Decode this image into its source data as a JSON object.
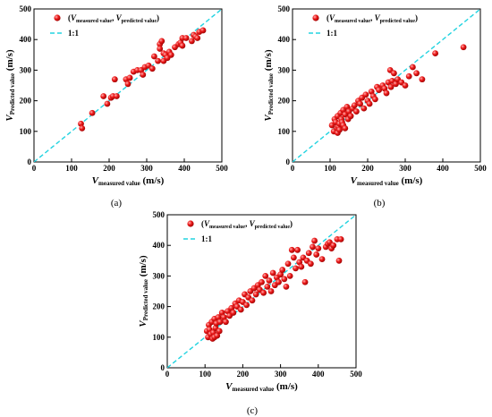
{
  "chart_data": [
    {
      "type": "scatter",
      "panel_label": "(a)",
      "xlim": [
        0,
        500
      ],
      "ylim": [
        0,
        500
      ],
      "xticks": [
        0,
        100,
        200,
        300,
        400,
        500
      ],
      "yticks": [
        0,
        100,
        200,
        300,
        400,
        500
      ],
      "xlabel": {
        "var": "V",
        "sub": "measured value",
        "unit": " (m/s)"
      },
      "ylabel": {
        "var": "V",
        "sub": "Predicted value",
        "unit": " (m/s)"
      },
      "legend": {
        "position": "top-left",
        "scatter_label": {
          "open": "(",
          "v1": "V",
          "s1": "measured value",
          "mid": ", ",
          "v2": "V",
          "s2": "predicted value",
          "close": ")"
        },
        "line_label": "1:1"
      },
      "grid": false,
      "series": [
        {
          "kind": "points",
          "points": [
            [
              125,
              125
            ],
            [
              128,
              110
            ],
            [
              155,
              160
            ],
            [
              185,
              215
            ],
            [
              195,
              190
            ],
            [
              205,
              210
            ],
            [
              210,
              215
            ],
            [
              215,
              270
            ],
            [
              220,
              215
            ],
            [
              245,
              270
            ],
            [
              250,
              255
            ],
            [
              255,
              275
            ],
            [
              265,
              295
            ],
            [
              275,
              300
            ],
            [
              285,
              300
            ],
            [
              290,
              285
            ],
            [
              295,
              310
            ],
            [
              305,
              315
            ],
            [
              315,
              305
            ],
            [
              320,
              345
            ],
            [
              330,
              330
            ],
            [
              335,
              385
            ],
            [
              335,
              370
            ],
            [
              340,
              395
            ],
            [
              345,
              330
            ],
            [
              345,
              355
            ],
            [
              350,
              350
            ],
            [
              355,
              340
            ],
            [
              360,
              360
            ],
            [
              365,
              350
            ],
            [
              375,
              375
            ],
            [
              385,
              385
            ],
            [
              390,
              390
            ],
            [
              395,
              380
            ],
            [
              395,
              405
            ],
            [
              405,
              405
            ],
            [
              420,
              395
            ],
            [
              425,
              415
            ],
            [
              430,
              410
            ],
            [
              435,
              405
            ],
            [
              440,
              425
            ],
            [
              450,
              430
            ]
          ]
        },
        {
          "kind": "line",
          "points": [
            [
              0,
              0
            ],
            [
              500,
              500
            ]
          ]
        }
      ]
    },
    {
      "type": "scatter",
      "panel_label": "(b)",
      "xlim": [
        0,
        500
      ],
      "ylim": [
        0,
        500
      ],
      "xticks": [
        0,
        100,
        200,
        300,
        400,
        500
      ],
      "yticks": [
        0,
        100,
        200,
        300,
        400,
        500
      ],
      "xlabel": {
        "var": "V",
        "sub": "measured value",
        "unit": " (m/s)"
      },
      "ylabel": {
        "var": "V",
        "sub": "Predicted value",
        "unit": " (m/s)"
      },
      "legend": {
        "position": "top-left",
        "scatter_label": {
          "open": "(",
          "v1": "V",
          "s1": "measured value",
          "mid": ", ",
          "v2": "V",
          "s2": "predicted value",
          "close": ")"
        },
        "line_label": "1:1"
      },
      "grid": false,
      "series": [
        {
          "kind": "points",
          "points": [
            [
              105,
              120
            ],
            [
              110,
              100
            ],
            [
              112,
              140
            ],
            [
              115,
              130
            ],
            [
              118,
              110
            ],
            [
              120,
              150
            ],
            [
              120,
              95
            ],
            [
              122,
              115
            ],
            [
              125,
              125
            ],
            [
              125,
              105
            ],
            [
              128,
              160
            ],
            [
              130,
              140
            ],
            [
              132,
              130
            ],
            [
              135,
              170
            ],
            [
              135,
              120
            ],
            [
              140,
              155
            ],
            [
              140,
              110
            ],
            [
              145,
              180
            ],
            [
              148,
              140
            ],
            [
              150,
              165
            ],
            [
              155,
              150
            ],
            [
              160,
              175
            ],
            [
              165,
              185
            ],
            [
              170,
              165
            ],
            [
              175,
              200
            ],
            [
              180,
              190
            ],
            [
              185,
              210
            ],
            [
              190,
              175
            ],
            [
              195,
              220
            ],
            [
              200,
              200
            ],
            [
              205,
              190
            ],
            [
              210,
              230
            ],
            [
              215,
              215
            ],
            [
              220,
              205
            ],
            [
              225,
              245
            ],
            [
              230,
              235
            ],
            [
              240,
              250
            ],
            [
              245,
              240
            ],
            [
              250,
              225
            ],
            [
              255,
              260
            ],
            [
              260,
              300
            ],
            [
              262,
              245
            ],
            [
              265,
              265
            ],
            [
              270,
              290
            ],
            [
              275,
              255
            ],
            [
              280,
              270
            ],
            [
              290,
              260
            ],
            [
              300,
              250
            ],
            [
              310,
              280
            ],
            [
              320,
              310
            ],
            [
              330,
              290
            ],
            [
              345,
              270
            ],
            [
              380,
              355
            ],
            [
              455,
              375
            ]
          ]
        },
        {
          "kind": "line",
          "points": [
            [
              0,
              0
            ],
            [
              500,
              500
            ]
          ]
        }
      ]
    },
    {
      "type": "scatter",
      "panel_label": "(c)",
      "xlim": [
        0,
        500
      ],
      "ylim": [
        0,
        500
      ],
      "xticks": [
        0,
        100,
        200,
        300,
        400,
        500
      ],
      "yticks": [
        0,
        100,
        200,
        300,
        400,
        500
      ],
      "xlabel": {
        "var": "V",
        "sub": "measured value",
        "unit": " (m/s)"
      },
      "ylabel": {
        "var": "V",
        "sub": "Predicted value",
        "unit": " (m/s)"
      },
      "legend": {
        "position": "top-left",
        "scatter_label": {
          "open": "(",
          "v1": "V",
          "s1": "measured value",
          "mid": ", ",
          "v2": "V",
          "s2": "predicted value",
          "close": ")"
        },
        "line_label": "1:1"
      },
      "grid": false,
      "series": [
        {
          "kind": "points",
          "points": [
            [
              105,
              120
            ],
            [
              108,
              100
            ],
            [
              110,
              140
            ],
            [
              112,
              125
            ],
            [
              115,
              110
            ],
            [
              118,
              150
            ],
            [
              120,
              95
            ],
            [
              122,
              115
            ],
            [
              125,
              160
            ],
            [
              125,
              100
            ],
            [
              128,
              130
            ],
            [
              130,
              145
            ],
            [
              132,
              105
            ],
            [
              135,
              165
            ],
            [
              138,
              120
            ],
            [
              140,
              150
            ],
            [
              145,
              180
            ],
            [
              150,
              165
            ],
            [
              155,
              150
            ],
            [
              160,
              185
            ],
            [
              165,
              170
            ],
            [
              170,
              195
            ],
            [
              175,
              180
            ],
            [
              180,
              210
            ],
            [
              185,
              200
            ],
            [
              190,
              220
            ],
            [
              195,
              190
            ],
            [
              200,
              215
            ],
            [
              205,
              240
            ],
            [
              210,
              205
            ],
            [
              215,
              230
            ],
            [
              220,
              250
            ],
            [
              225,
              220
            ],
            [
              230,
              260
            ],
            [
              235,
              240
            ],
            [
              240,
              270
            ],
            [
              245,
              255
            ],
            [
              250,
              280
            ],
            [
              255,
              245
            ],
            [
              260,
              300
            ],
            [
              265,
              265
            ],
            [
              270,
              285
            ],
            [
              275,
              250
            ],
            [
              280,
              310
            ],
            [
              285,
              270
            ],
            [
              290,
              295
            ],
            [
              295,
              280
            ],
            [
              300,
              305
            ],
            [
              305,
              320
            ],
            [
              310,
              290
            ],
            [
              315,
              265
            ],
            [
              320,
              340
            ],
            [
              325,
              300
            ],
            [
              330,
              385
            ],
            [
              335,
              360
            ],
            [
              340,
              325
            ],
            [
              345,
              385
            ],
            [
              350,
              345
            ],
            [
              355,
              330
            ],
            [
              360,
              360
            ],
            [
              365,
              280
            ],
            [
              370,
              350
            ],
            [
              375,
              375
            ],
            [
              380,
              340
            ],
            [
              385,
              395
            ],
            [
              390,
              415
            ],
            [
              395,
              370
            ],
            [
              400,
              390
            ],
            [
              410,
              355
            ],
            [
              420,
              395
            ],
            [
              425,
              405
            ],
            [
              430,
              410
            ],
            [
              435,
              390
            ],
            [
              440,
              400
            ],
            [
              450,
              420
            ],
            [
              455,
              350
            ],
            [
              460,
              420
            ]
          ]
        },
        {
          "kind": "line",
          "points": [
            [
              0,
              0
            ],
            [
              500,
              500
            ]
          ]
        }
      ]
    }
  ]
}
